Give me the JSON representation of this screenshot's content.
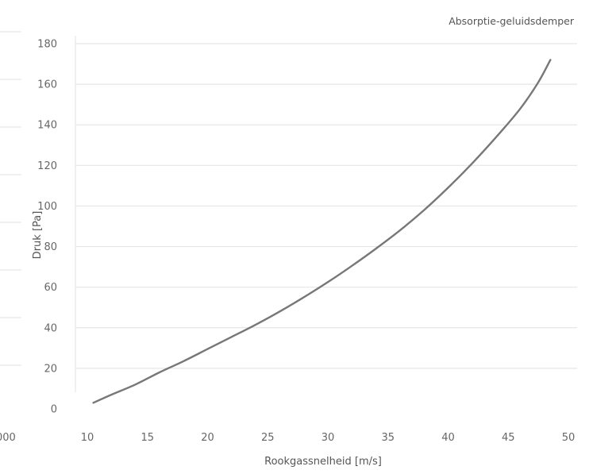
{
  "chart_data": {
    "type": "line",
    "title": "Absorptie-geluidsdemper",
    "xlabel": "Rookgassnelheid [m/s]",
    "ylabel": "Druk [Pa]",
    "xlim": [
      10,
      50
    ],
    "ylim": [
      0,
      180
    ],
    "grid": true,
    "xticks": [
      "10",
      "15",
      "20",
      "25",
      "30",
      "35",
      "40",
      "45",
      "50"
    ],
    "yticks": [
      "0",
      "20",
      "40",
      "60",
      "80",
      "100",
      "120",
      "140",
      "160",
      "180"
    ],
    "series": [
      {
        "color": "#777777",
        "points": [
          [
            10.5,
            3
          ],
          [
            12,
            7
          ],
          [
            14,
            12
          ],
          [
            16,
            18
          ],
          [
            18,
            23.5
          ],
          [
            20,
            29.5
          ],
          [
            22,
            35.5
          ],
          [
            24,
            41.5
          ],
          [
            26,
            48
          ],
          [
            28,
            55
          ],
          [
            30,
            62.5
          ],
          [
            32,
            70.5
          ],
          [
            34,
            79
          ],
          [
            36,
            88
          ],
          [
            38,
            98
          ],
          [
            40,
            109
          ],
          [
            42,
            121
          ],
          [
            44,
            134
          ],
          [
            46,
            148
          ],
          [
            47.5,
            161
          ],
          [
            48.5,
            172
          ]
        ]
      }
    ],
    "left_panel_partial": {
      "tick_label": "000",
      "grid_rows": 8
    }
  }
}
